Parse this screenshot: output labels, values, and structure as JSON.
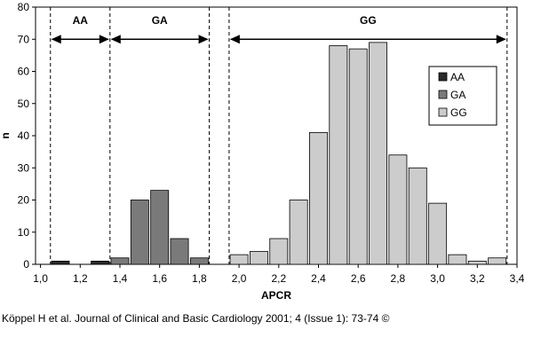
{
  "chart_data": {
    "type": "bar",
    "xlabel": "APCR",
    "ylabel": "n",
    "ylim": [
      0,
      80
    ],
    "xlim": [
      0.975,
      3.4
    ],
    "bin_width": 0.1,
    "grid": false,
    "legend_position": "top-right",
    "x_ticks": [
      1.0,
      1.2,
      1.4,
      1.6,
      1.8,
      2.0,
      2.2,
      2.4,
      2.6,
      2.8,
      3.0,
      3.2,
      3.4
    ],
    "x_tick_labels": [
      "1,0",
      "1,2",
      "1,4",
      "1,6",
      "1,8",
      "2,0",
      "2,2",
      "2,4",
      "2,6",
      "2,8",
      "3,0",
      "3,2",
      "3,4"
    ],
    "y_ticks": [
      0,
      10,
      20,
      30,
      40,
      50,
      60,
      70,
      80
    ],
    "y_tick_labels": [
      "0",
      "10",
      "20",
      "30",
      "40",
      "50",
      "60",
      "70",
      "80"
    ],
    "series": [
      {
        "name": "AA",
        "color": "#2a2a2a",
        "x": [
          1.1,
          1.3
        ],
        "values": [
          1,
          1
        ]
      },
      {
        "name": "GA",
        "color": "#7a7a7a",
        "x": [
          1.4,
          1.5,
          1.6,
          1.7,
          1.8
        ],
        "values": [
          2,
          20,
          23,
          8,
          2
        ]
      },
      {
        "name": "GG",
        "color": "#cccccc",
        "x": [
          2.0,
          2.1,
          2.2,
          2.3,
          2.4,
          2.5,
          2.6,
          2.7,
          2.8,
          2.9,
          3.0,
          3.1,
          3.2,
          3.3
        ],
        "values": [
          3,
          4,
          8,
          20,
          41,
          68,
          67,
          69,
          34,
          30,
          19,
          3,
          1,
          2
        ]
      }
    ],
    "genotype_ranges": [
      {
        "label": "AA",
        "from": 1.05,
        "to": 1.35
      },
      {
        "label": "GA",
        "from": 1.35,
        "to": 1.85
      },
      {
        "label": "GG",
        "from": 1.95,
        "to": 3.35
      }
    ],
    "range_arrow_y": 70
  },
  "caption": "Köppel H et al. Journal of Clinical and Basic Cardiology 2001; 4 (Issue 1): 73-74 ©"
}
